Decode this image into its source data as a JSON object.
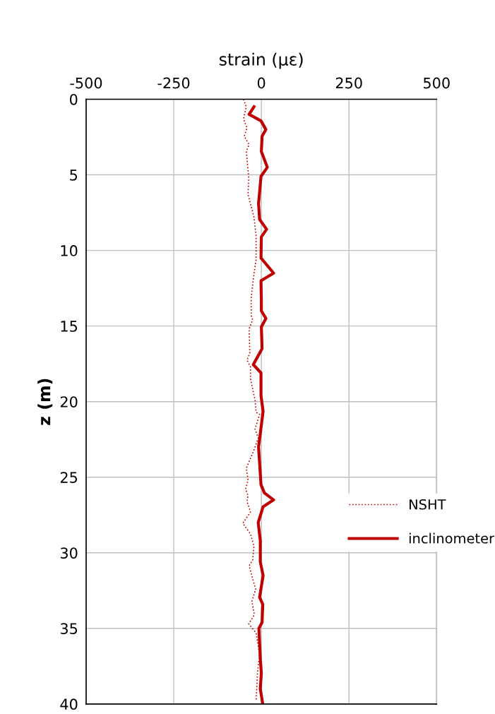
{
  "chart_data": {
    "type": "line",
    "xlabel": "strain (με)",
    "ylabel": "z (m)",
    "xlim": [
      -500,
      500
    ],
    "xticks": [
      -500,
      -250,
      0,
      250,
      500
    ],
    "ylim": [
      40,
      0
    ],
    "yticks": [
      0,
      5,
      10,
      15,
      20,
      25,
      30,
      35,
      40
    ],
    "grid": true,
    "legend": "right",
    "series": [
      {
        "name": "NSHT",
        "color": "#c00000",
        "line_style": "dotted",
        "x": [
          -51,
          -43,
          -51,
          -41,
          -49,
          -35,
          -43,
          -36,
          -38,
          -21,
          -15,
          -15,
          -21,
          -29,
          -29,
          -25,
          -35,
          -33,
          -41,
          -31,
          -31,
          -18,
          -15,
          -5,
          -18,
          -9,
          -21,
          -43,
          -38,
          -45,
          -38,
          -41,
          -31,
          -53,
          -31,
          -21,
          -25,
          -35,
          -25,
          -16,
          -27,
          -20,
          -36,
          -15,
          -5,
          -11,
          -15
        ],
        "values": [
          0,
          0.5,
          1.3,
          1.9,
          2.45,
          3.0,
          3.45,
          5.2,
          6.3,
          7.8,
          9.05,
          10.6,
          11.55,
          13.1,
          14.3,
          14.6,
          15.2,
          16.8,
          17.25,
          17.7,
          18.5,
          19.9,
          20.7,
          20.85,
          21.8,
          22.4,
          23.2,
          24.4,
          25.2,
          25.8,
          26.2,
          26.6,
          27.3,
          28.05,
          28.75,
          29.55,
          30.5,
          30.85,
          31.7,
          32.4,
          33.2,
          34.1,
          34.7,
          35.3,
          36.7,
          37.95,
          39.8
        ]
      },
      {
        "name": "inclinometer",
        "color": "#c00000",
        "line_style": "solid",
        "x": [
          -21,
          -35,
          -1,
          13,
          2,
          0,
          17,
          -1,
          -8,
          -5,
          15,
          0,
          -1,
          35,
          -1,
          0,
          0,
          13,
          0,
          2,
          -23,
          -1,
          -1,
          5,
          -8,
          -1,
          9,
          35,
          5,
          -9,
          -3,
          -3,
          5,
          -5,
          4,
          2,
          -7,
          -3,
          0,
          -3,
          4
        ],
        "values": [
          0.5,
          1.0,
          1.43,
          2.0,
          2.45,
          3.46,
          4.5,
          5.1,
          6.9,
          7.95,
          8.6,
          9.1,
          10.5,
          11.5,
          12.0,
          13.3,
          14.0,
          14.5,
          15.05,
          16.5,
          17.55,
          18.1,
          19.6,
          20.65,
          23.0,
          25.5,
          26.05,
          26.5,
          26.95,
          28.0,
          29.2,
          30.6,
          31.5,
          32.95,
          33.4,
          34.6,
          35.0,
          37.0,
          37.95,
          39.0,
          40.0
        ]
      }
    ]
  }
}
